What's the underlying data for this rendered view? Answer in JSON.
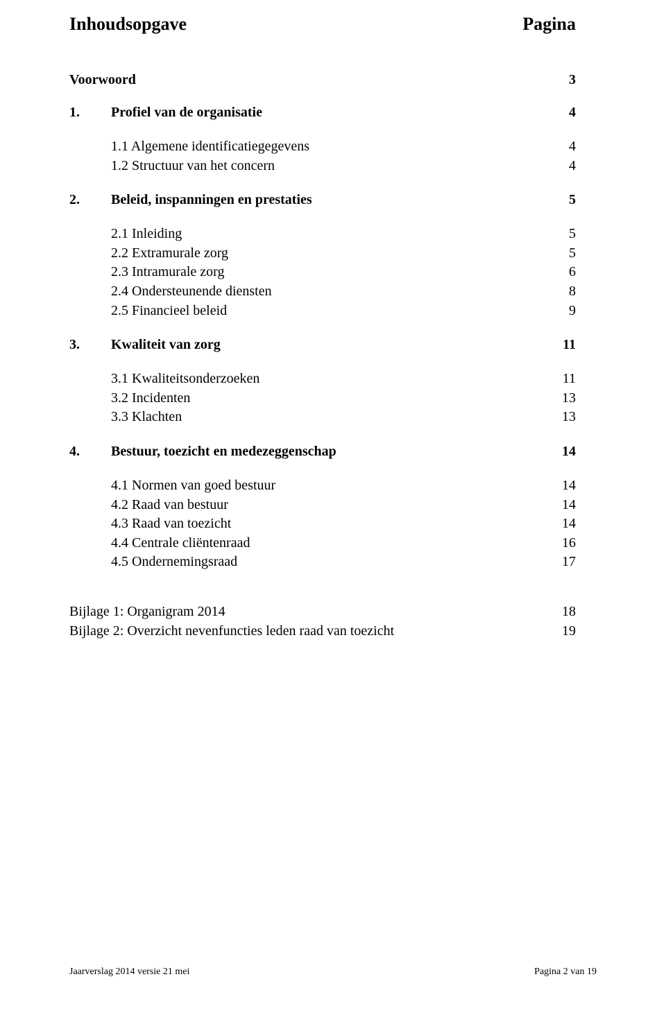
{
  "title_left": "Inhoudsopgave",
  "title_right": "Pagina",
  "voorwoord": {
    "label": "Voorwoord",
    "page": "3"
  },
  "sections": [
    {
      "num": "1.",
      "label": "Profiel van de organisatie",
      "page": "4",
      "subs": [
        {
          "label": "1.1 Algemene identificatiegegevens",
          "page": "4"
        },
        {
          "label": "1.2 Structuur van het concern",
          "page": "4"
        }
      ]
    },
    {
      "num": "2.",
      "label": "Beleid, inspanningen en prestaties",
      "page": "5",
      "subs": [
        {
          "label": "2.1 Inleiding",
          "page": "5"
        },
        {
          "label": "2.2 Extramurale zorg",
          "page": "5"
        },
        {
          "label": "2.3 Intramurale zorg",
          "page": "6"
        },
        {
          "label": "2.4 Ondersteunende diensten",
          "page": "8"
        },
        {
          "label": "2.5 Financieel beleid",
          "page": "9"
        }
      ]
    },
    {
      "num": "3.",
      "label": "Kwaliteit van zorg",
      "page": "11",
      "subs": [
        {
          "label": "3.1 Kwaliteitsonderzoeken",
          "page": "11"
        },
        {
          "label": "3.2 Incidenten",
          "page": "13"
        },
        {
          "label": "3.3 Klachten",
          "page": "13"
        }
      ]
    },
    {
      "num": "4.",
      "label": "Bestuur, toezicht en medezeggenschap",
      "page": "14",
      "subs": [
        {
          "label": "4.1 Normen van goed bestuur",
          "page": "14"
        },
        {
          "label": "4.2 Raad van bestuur",
          "page": "14"
        },
        {
          "label": "4.3 Raad van toezicht",
          "page": "14"
        },
        {
          "label": "4.4 Centrale cliëntenraad",
          "page": "16"
        },
        {
          "label": "4.5 Ondernemingsraad",
          "page": "17"
        }
      ]
    }
  ],
  "bijlagen": [
    {
      "label": "Bijlage 1: Organigram 2014",
      "page": "18"
    },
    {
      "label": "Bijlage 2: Overzicht nevenfuncties leden raad van toezicht",
      "page": "19"
    }
  ],
  "footer_left": "Jaarverslag 2014 versie 21 mei",
  "footer_right": "Pagina 2 van 19"
}
